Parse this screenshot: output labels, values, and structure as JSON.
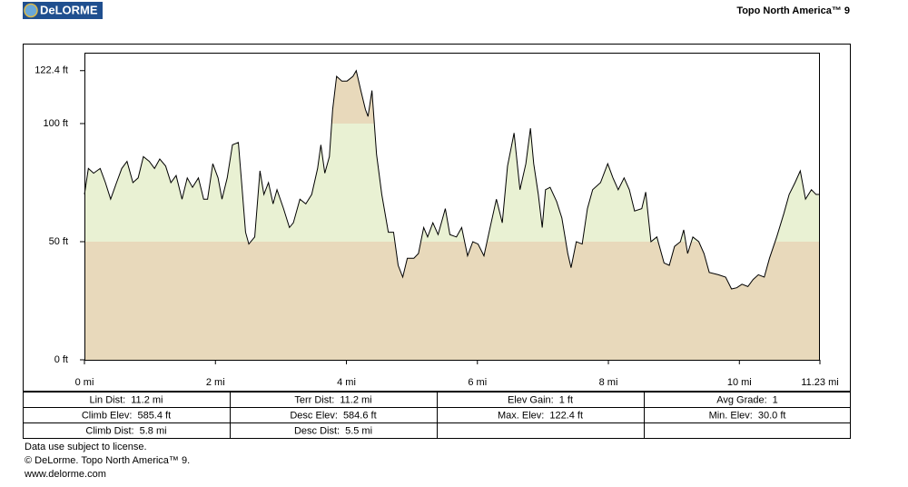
{
  "header": {
    "logo": "DeLORME",
    "product": "Topo North America™ 9"
  },
  "chart_data": {
    "type": "area",
    "x": [
      0,
      0.06,
      0.14,
      0.24,
      0.32,
      0.4,
      0.49,
      0.57,
      0.65,
      0.74,
      0.82,
      0.9,
      0.99,
      1.07,
      1.15,
      1.24,
      1.32,
      1.4,
      1.49,
      1.57,
      1.65,
      1.74,
      1.82,
      1.88,
      1.96,
      2.04,
      2.1,
      2.18,
      2.26,
      2.35,
      2.4,
      2.46,
      2.51,
      2.6,
      2.68,
      2.74,
      2.81,
      2.88,
      2.94,
      3.04,
      3.13,
      3.19,
      3.29,
      3.38,
      3.47,
      3.56,
      3.61,
      3.67,
      3.74,
      3.79,
      3.85,
      3.93,
      4.01,
      4.1,
      4.15,
      4.22,
      4.29,
      4.33,
      4.39,
      4.46,
      4.54,
      4.64,
      4.72,
      4.79,
      4.86,
      4.93,
      5.03,
      5.1,
      5.18,
      5.24,
      5.32,
      5.4,
      5.51,
      5.58,
      5.68,
      5.76,
      5.85,
      5.93,
      6.01,
      6.1,
      6.21,
      6.29,
      6.38,
      6.46,
      6.56,
      6.65,
      6.74,
      6.81,
      6.86,
      6.93,
      6.99,
      7.04,
      7.11,
      7.21,
      7.29,
      7.38,
      7.43,
      7.51,
      7.6,
      7.68,
      7.76,
      7.88,
      7.99,
      8.07,
      8.15,
      8.24,
      8.32,
      8.4,
      8.51,
      8.57,
      8.65,
      8.74,
      8.85,
      8.93,
      9.01,
      9.1,
      9.15,
      9.21,
      9.29,
      9.38,
      9.46,
      9.54,
      9.68,
      9.79,
      9.88,
      9.96,
      10.04,
      10.13,
      10.21,
      10.29,
      10.38,
      10.46,
      10.57,
      10.68,
      10.76,
      10.85,
      10.93,
      11.01,
      11.1,
      11.17,
      11.23
    ],
    "values": [
      70,
      81,
      79,
      81,
      75,
      68,
      75,
      81,
      84,
      75,
      77,
      86,
      84,
      81,
      85,
      82,
      75,
      78,
      68,
      77,
      73,
      77,
      68,
      68,
      83,
      77,
      68,
      77,
      91,
      92,
      75,
      54,
      49,
      52,
      80,
      70,
      75,
      66,
      72,
      64,
      56,
      58,
      68,
      66,
      70,
      81,
      91,
      79,
      86,
      106,
      120,
      118,
      118,
      120,
      122.4,
      114,
      106,
      103,
      114,
      87,
      70,
      54,
      54,
      40,
      35,
      43,
      43,
      45,
      56,
      52,
      58,
      53,
      64,
      53,
      52,
      56,
      44,
      50,
      49,
      44,
      58,
      68,
      58,
      82,
      96,
      72,
      83,
      98,
      83,
      70,
      56,
      72,
      73,
      67,
      60,
      45,
      39,
      50,
      49,
      64,
      72,
      75,
      83,
      77,
      72,
      77,
      72,
      63,
      64,
      71,
      50,
      52,
      41,
      40,
      48,
      50,
      55,
      45,
      52,
      50,
      45,
      37,
      36,
      35,
      30.0,
      30.5,
      32,
      31,
      34,
      36,
      35,
      43,
      52,
      62,
      70,
      75,
      80,
      68,
      72,
      70,
      70
    ],
    "color": "#000000",
    "band_colors": [
      "#e8d9bb",
      "#e9f1d3",
      "#e8d9bb"
    ],
    "xlim": [
      0,
      11.23
    ],
    "ylim": [
      0,
      130
    ],
    "xticks": [
      {
        "value": 0,
        "label": "0 mi"
      },
      {
        "value": 2,
        "label": "2 mi"
      },
      {
        "value": 4,
        "label": "4 mi"
      },
      {
        "value": 6,
        "label": "6 mi"
      },
      {
        "value": 8,
        "label": "8 mi"
      },
      {
        "value": 10,
        "label": "10 mi"
      },
      {
        "value": 11.23,
        "label": "11.23 mi"
      }
    ],
    "yticks": [
      {
        "value": 0,
        "label": "0 ft"
      },
      {
        "value": 50,
        "label": "50 ft"
      },
      {
        "value": 100,
        "label": "100 ft"
      },
      {
        "value": 122.4,
        "label": "122.4 ft"
      }
    ]
  },
  "stats": {
    "rows": [
      [
        {
          "label": "Lin Dist:",
          "value": "11.2 mi"
        },
        {
          "label": "Terr Dist:",
          "value": "11.2 mi"
        },
        {
          "label": "Elev Gain:",
          "value": "1 ft"
        },
        {
          "label": "Avg Grade:",
          "value": "1"
        }
      ],
      [
        {
          "label": "Climb Elev:",
          "value": "585.4 ft"
        },
        {
          "label": "Desc Elev:",
          "value": "584.6 ft"
        },
        {
          "label": "Max. Elev:",
          "value": "122.4 ft"
        },
        {
          "label": "Min. Elev:",
          "value": "30.0 ft"
        }
      ],
      [
        {
          "label": "Climb Dist:",
          "value": "5.8 mi"
        },
        {
          "label": "Desc Dist:",
          "value": "5.5 mi"
        }
      ]
    ]
  },
  "footer": [
    "Data use subject to license.",
    "© DeLorme. Topo North America™ 9.",
    "www.delorme.com"
  ]
}
